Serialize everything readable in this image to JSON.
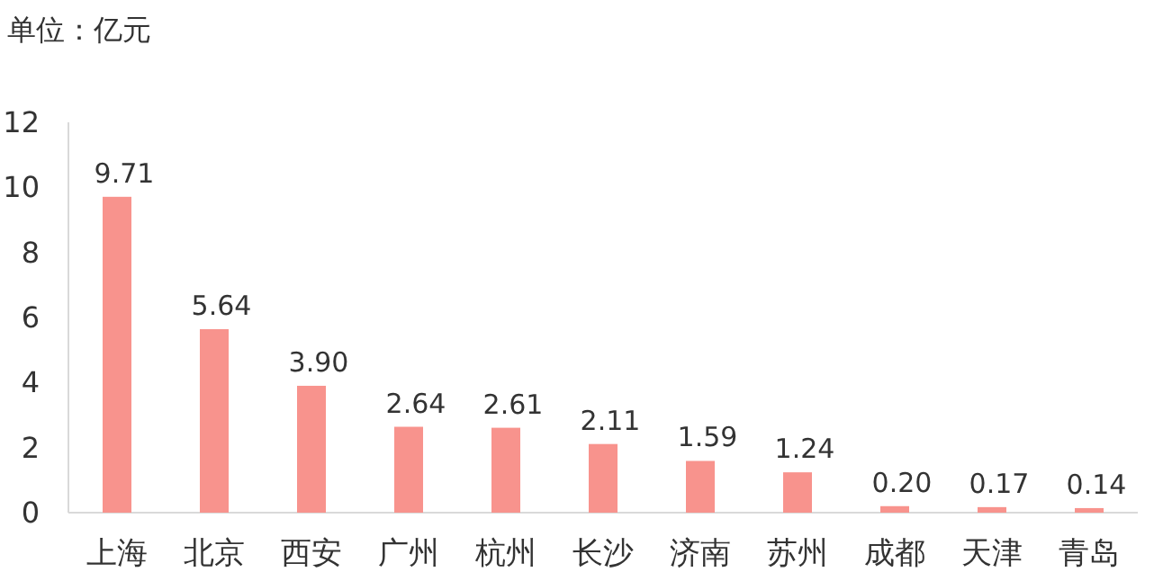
{
  "chart_data": {
    "type": "bar",
    "ylabel": "单位：亿元",
    "categories": [
      "上海",
      "北京",
      "西安",
      "广州",
      "杭州",
      "长沙",
      "济南",
      "苏州",
      "成都",
      "天津",
      "青岛"
    ],
    "values": [
      9.71,
      5.64,
      3.9,
      2.64,
      2.61,
      2.11,
      1.59,
      1.24,
      0.2,
      0.17,
      0.14
    ],
    "value_labels": [
      "9.71",
      "5.64",
      "3.90",
      "2.64",
      "2.61",
      "2.11",
      "1.59",
      "1.24",
      "0.20",
      "0.17",
      "0.14"
    ],
    "color": "#f8938d",
    "ylim": [
      0,
      12
    ],
    "yticks": [
      0,
      2,
      4,
      6,
      8,
      10,
      12
    ],
    "grid": false
  }
}
